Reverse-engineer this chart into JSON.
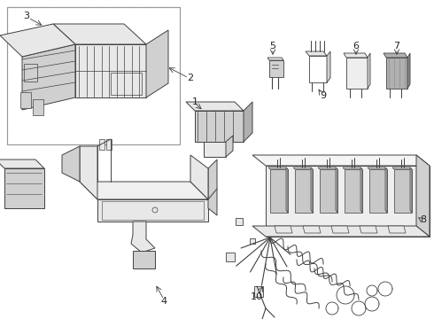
{
  "background_color": "#ffffff",
  "line_color": "#404040",
  "label_color": "#222222",
  "figure_width": 4.9,
  "figure_height": 3.6,
  "dpi": 100,
  "border_color": "#aaaaaa",
  "fill_light": "#e8e8e8",
  "fill_mid": "#d0d0d0",
  "fill_dark": "#b0b0b0",
  "fill_darkest": "#888888"
}
